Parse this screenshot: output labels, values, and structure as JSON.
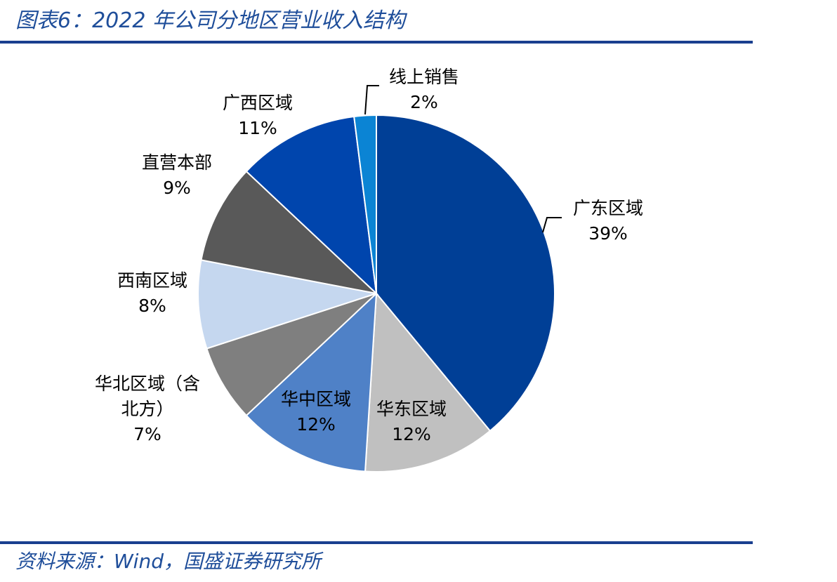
{
  "header": {
    "title": "图表6：2022 年公司分地区营业收入结构"
  },
  "footer": {
    "source": "资料来源：Wind，国盛证券研究所"
  },
  "colors": {
    "rule": "#1a3f8f",
    "guangdong": "#003f96",
    "huadong": "#c0c0c0",
    "huazhong": "#4f81c7",
    "huabei": "#7f7f7f",
    "xinan": "#c5d7ef",
    "zhiying": "#595959",
    "guangxi": "#0045ad",
    "online": "#0b84d4"
  },
  "chart_data": {
    "type": "pie",
    "title": "",
    "slices": [
      {
        "key": "guangdong",
        "name": "广东区域",
        "value": 39,
        "pct_label": "39%"
      },
      {
        "key": "huadong",
        "name": "华东区域",
        "value": 12,
        "pct_label": "12%"
      },
      {
        "key": "huazhong",
        "name": "华中区域",
        "value": 12,
        "pct_label": "12%"
      },
      {
        "key": "huabei",
        "name": "华北区域（含北方）",
        "name_lines": [
          "华北区域（含",
          "北方）"
        ],
        "value": 7,
        "pct_label": "7%"
      },
      {
        "key": "xinan",
        "name": "西南区域",
        "value": 8,
        "pct_label": "8%"
      },
      {
        "key": "zhiying",
        "name": "直营本部",
        "value": 9,
        "pct_label": "9%"
      },
      {
        "key": "guangxi",
        "name": "广西区域",
        "value": 11,
        "pct_label": "11%"
      },
      {
        "key": "online",
        "name": "线上销售",
        "value": 2,
        "pct_label": "2%"
      }
    ]
  }
}
